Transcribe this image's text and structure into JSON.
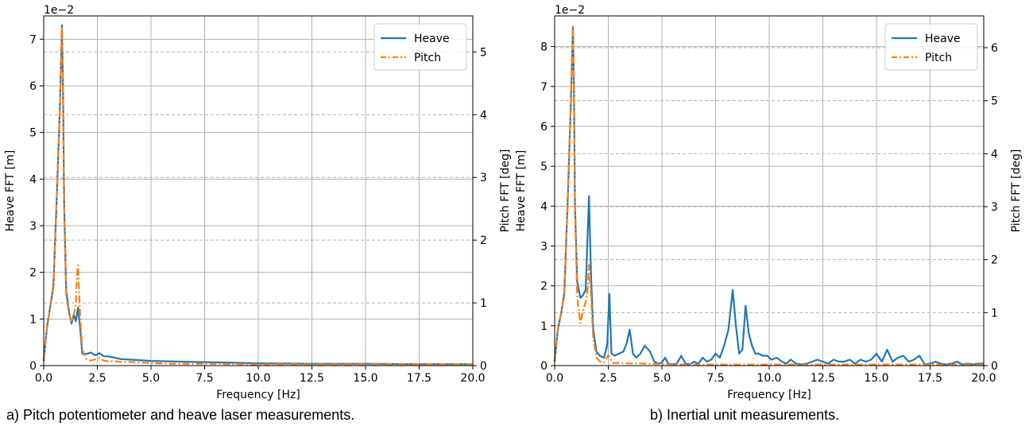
{
  "captions": {
    "a": "a) Pitch potentiometer and heave laser measurements.",
    "b": "b) Inertial unit measurements."
  },
  "colors": {
    "heave": "#1f77b4",
    "pitch": "#ff7f0e",
    "grid": "#b0b0b0"
  },
  "chart_data": [
    {
      "type": "line",
      "panel": "a",
      "xlabel": "Frequency [Hz]",
      "ylabel": "Heave FFT [m]",
      "y2label": "Pitch FFT [deg]",
      "xlim": [
        0,
        20
      ],
      "ylim": [
        0,
        7.5
      ],
      "y2lim": [
        0,
        5.575
      ],
      "yscale_label": "1e−2",
      "xticks": [
        "0.0",
        "2.5",
        "5.0",
        "7.5",
        "10.0",
        "12.5",
        "15.0",
        "17.5",
        "20.0"
      ],
      "yticks": [
        "0",
        "1",
        "2",
        "3",
        "4",
        "5",
        "6",
        "7"
      ],
      "y2ticks": [
        "0",
        "1",
        "2",
        "3",
        "4",
        "5"
      ],
      "legend_position": "top-right",
      "grid": true,
      "series": [
        {
          "name": "Heave",
          "axis": "left",
          "style": "solid",
          "x": [
            0,
            0.15,
            0.3,
            0.45,
            0.6,
            0.75,
            0.85,
            0.9,
            0.95,
            1.05,
            1.2,
            1.3,
            1.4,
            1.5,
            1.6,
            1.7,
            1.8,
            2.0,
            2.2,
            2.4,
            2.6,
            2.8,
            3.0,
            3.3,
            3.6,
            4.0,
            5.0,
            6.0,
            8.0,
            10.0,
            12.5,
            15.0,
            17.5,
            20.0
          ],
          "y": [
            0.1,
            0.8,
            1.25,
            1.7,
            3.5,
            5.5,
            7.3,
            6.0,
            3.5,
            1.6,
            1.1,
            0.9,
            1.1,
            0.95,
            1.25,
            0.8,
            0.25,
            0.25,
            0.28,
            0.22,
            0.27,
            0.2,
            0.2,
            0.17,
            0.14,
            0.13,
            0.1,
            0.09,
            0.07,
            0.05,
            0.04,
            0.04,
            0.03,
            0.03
          ]
        },
        {
          "name": "Pitch",
          "axis": "right",
          "style": "dashdot",
          "x": [
            0,
            0.15,
            0.3,
            0.45,
            0.6,
            0.75,
            0.85,
            0.9,
            0.95,
            1.05,
            1.2,
            1.3,
            1.4,
            1.5,
            1.55,
            1.6,
            1.7,
            1.8,
            2.0,
            2.2,
            2.4,
            2.6,
            2.8,
            3.0,
            3.3,
            3.6,
            4.0,
            4.5,
            5.0,
            6.0,
            7.5,
            10.0,
            12.5,
            15.0,
            17.5,
            20.0
          ],
          "y": [
            0.1,
            0.6,
            0.95,
            1.3,
            2.6,
            4.1,
            5.4,
            4.4,
            2.6,
            1.1,
            0.8,
            0.7,
            0.8,
            1.0,
            1.45,
            1.6,
            0.8,
            0.25,
            0.1,
            0.08,
            0.1,
            0.12,
            0.08,
            0.07,
            0.07,
            0.06,
            0.06,
            0.05,
            0.04,
            0.03,
            0.03,
            0.02,
            0.02,
            0.02,
            0.02,
            0.02
          ]
        }
      ]
    },
    {
      "type": "line",
      "panel": "b",
      "xlabel": "Frequency [Hz]",
      "ylabel": "Heave FFT [m]",
      "y2label": "Pitch FFT [deg]",
      "xlim": [
        0,
        20
      ],
      "ylim": [
        0,
        8.77
      ],
      "y2lim": [
        0,
        6.6
      ],
      "yscale_label": "1e−2",
      "xticks": [
        "0.0",
        "2.5",
        "5.0",
        "7.5",
        "10.0",
        "12.5",
        "15.0",
        "17.5",
        "20.0"
      ],
      "yticks": [
        "0",
        "1",
        "2",
        "3",
        "4",
        "5",
        "6",
        "7",
        "8"
      ],
      "y2ticks": [
        "0",
        "1",
        "2",
        "3",
        "4",
        "5",
        "6"
      ],
      "legend_position": "top-right",
      "grid": true,
      "series": [
        {
          "name": "Heave",
          "axis": "left",
          "style": "solid",
          "x": [
            0,
            0.15,
            0.3,
            0.45,
            0.6,
            0.75,
            0.85,
            0.9,
            0.95,
            1.05,
            1.2,
            1.3,
            1.45,
            1.55,
            1.6,
            1.7,
            1.8,
            1.95,
            2.1,
            2.3,
            2.45,
            2.55,
            2.65,
            2.8,
            3.0,
            3.2,
            3.35,
            3.5,
            3.65,
            3.8,
            4.0,
            4.2,
            4.45,
            4.65,
            4.85,
            5.0,
            5.15,
            5.3,
            5.5,
            5.7,
            5.9,
            6.1,
            6.3,
            6.5,
            6.7,
            6.9,
            7.1,
            7.3,
            7.5,
            7.7,
            7.9,
            8.1,
            8.3,
            8.45,
            8.6,
            8.75,
            8.9,
            9.05,
            9.2,
            9.35,
            9.5,
            9.7,
            9.9,
            10.1,
            10.35,
            10.6,
            10.8,
            11.0,
            11.25,
            11.5,
            11.75,
            12.0,
            12.25,
            12.5,
            12.75,
            13.0,
            13.25,
            13.5,
            13.75,
            14.0,
            14.25,
            14.5,
            14.75,
            15.0,
            15.25,
            15.5,
            15.75,
            16.0,
            16.25,
            16.5,
            16.75,
            17.0,
            17.25,
            17.5,
            17.75,
            18.0,
            18.25,
            18.5,
            18.75,
            19.0,
            19.25,
            19.5,
            19.75,
            20.0
          ],
          "y": [
            0.1,
            0.9,
            1.3,
            1.8,
            4.0,
            6.5,
            8.5,
            7.0,
            4.0,
            2.1,
            1.7,
            1.75,
            1.9,
            3.5,
            4.25,
            2.2,
            0.9,
            0.35,
            0.25,
            0.2,
            0.5,
            1.8,
            0.3,
            0.25,
            0.3,
            0.35,
            0.55,
            0.9,
            0.3,
            0.2,
            0.3,
            0.5,
            0.35,
            0.1,
            0.05,
            0.08,
            0.2,
            0.05,
            0.03,
            0.05,
            0.25,
            0.05,
            0.03,
            0.1,
            0.05,
            0.2,
            0.1,
            0.15,
            0.3,
            0.2,
            0.5,
            0.9,
            1.9,
            1.0,
            0.3,
            0.4,
            1.5,
            0.8,
            0.5,
            0.3,
            0.3,
            0.25,
            0.25,
            0.15,
            0.2,
            0.1,
            0.05,
            0.15,
            0.05,
            0.03,
            0.05,
            0.1,
            0.15,
            0.1,
            0.05,
            0.15,
            0.1,
            0.1,
            0.15,
            0.05,
            0.15,
            0.1,
            0.15,
            0.3,
            0.1,
            0.4,
            0.1,
            0.2,
            0.25,
            0.1,
            0.15,
            0.25,
            0.03,
            0.05,
            0.1,
            0.05,
            0.03,
            0.05,
            0.1,
            0.03,
            0.05,
            0.03,
            0.05,
            0.05
          ]
        },
        {
          "name": "Pitch",
          "axis": "right",
          "style": "dashdot",
          "x": [
            0,
            0.15,
            0.3,
            0.45,
            0.6,
            0.75,
            0.85,
            0.9,
            0.95,
            1.05,
            1.2,
            1.3,
            1.45,
            1.55,
            1.6,
            1.7,
            1.8,
            1.95,
            2.1,
            2.3,
            2.5,
            2.7,
            3.0,
            3.5,
            4.0,
            5.0,
            6.0,
            7.5,
            10.0,
            12.5,
            15.0,
            17.5,
            20.0
          ],
          "y": [
            0.1,
            0.7,
            1.0,
            1.3,
            3.0,
            4.9,
            6.4,
            5.2,
            3.0,
            1.3,
            0.8,
            1.0,
            1.2,
            1.5,
            1.9,
            1.3,
            0.5,
            0.15,
            0.08,
            0.06,
            0.2,
            0.05,
            0.05,
            0.04,
            0.04,
            0.03,
            0.02,
            0.02,
            0.02,
            0.02,
            0.02,
            0.02,
            0.02
          ]
        }
      ]
    }
  ]
}
